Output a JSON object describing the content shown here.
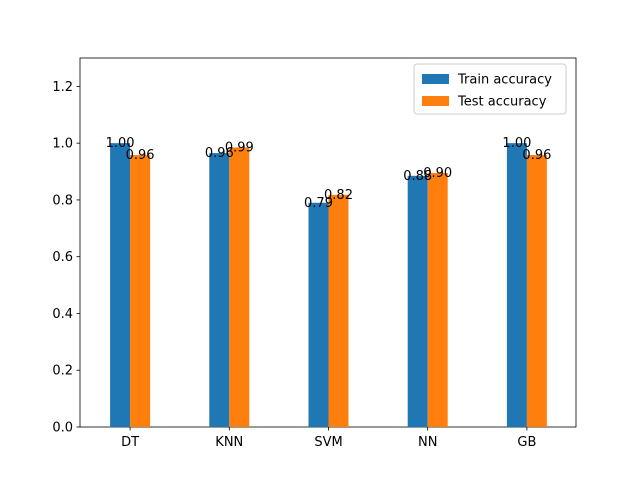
{
  "chart_data": {
    "type": "bar",
    "title": "",
    "xlabel": "",
    "ylabel": "",
    "categories": [
      "DT",
      "KNN",
      "SVM",
      "NN",
      "GB"
    ],
    "series": [
      {
        "name": "Train accuracy",
        "color": "#1f77b4",
        "values": [
          1.0,
          0.965,
          0.79,
          0.885,
          1.0
        ],
        "labels": [
          "1.00",
          "0.96",
          "0.79",
          "0.88",
          "1.00"
        ]
      },
      {
        "name": "Test accuracy",
        "color": "#ff7f0e",
        "values": [
          0.958,
          0.985,
          0.818,
          0.895,
          0.958
        ],
        "labels": [
          "0.96",
          "0.99",
          "0.82",
          "0.90",
          "0.96"
        ]
      }
    ],
    "ylim": [
      0,
      1.3
    ],
    "yticks": [
      0.0,
      0.2,
      0.4,
      0.6,
      0.8,
      1.0,
      1.2
    ],
    "ytick_labels": [
      "0.0",
      "0.2",
      "0.4",
      "0.6",
      "0.8",
      "1.0",
      "1.2"
    ],
    "grid": false,
    "legend_position": "top-right"
  }
}
